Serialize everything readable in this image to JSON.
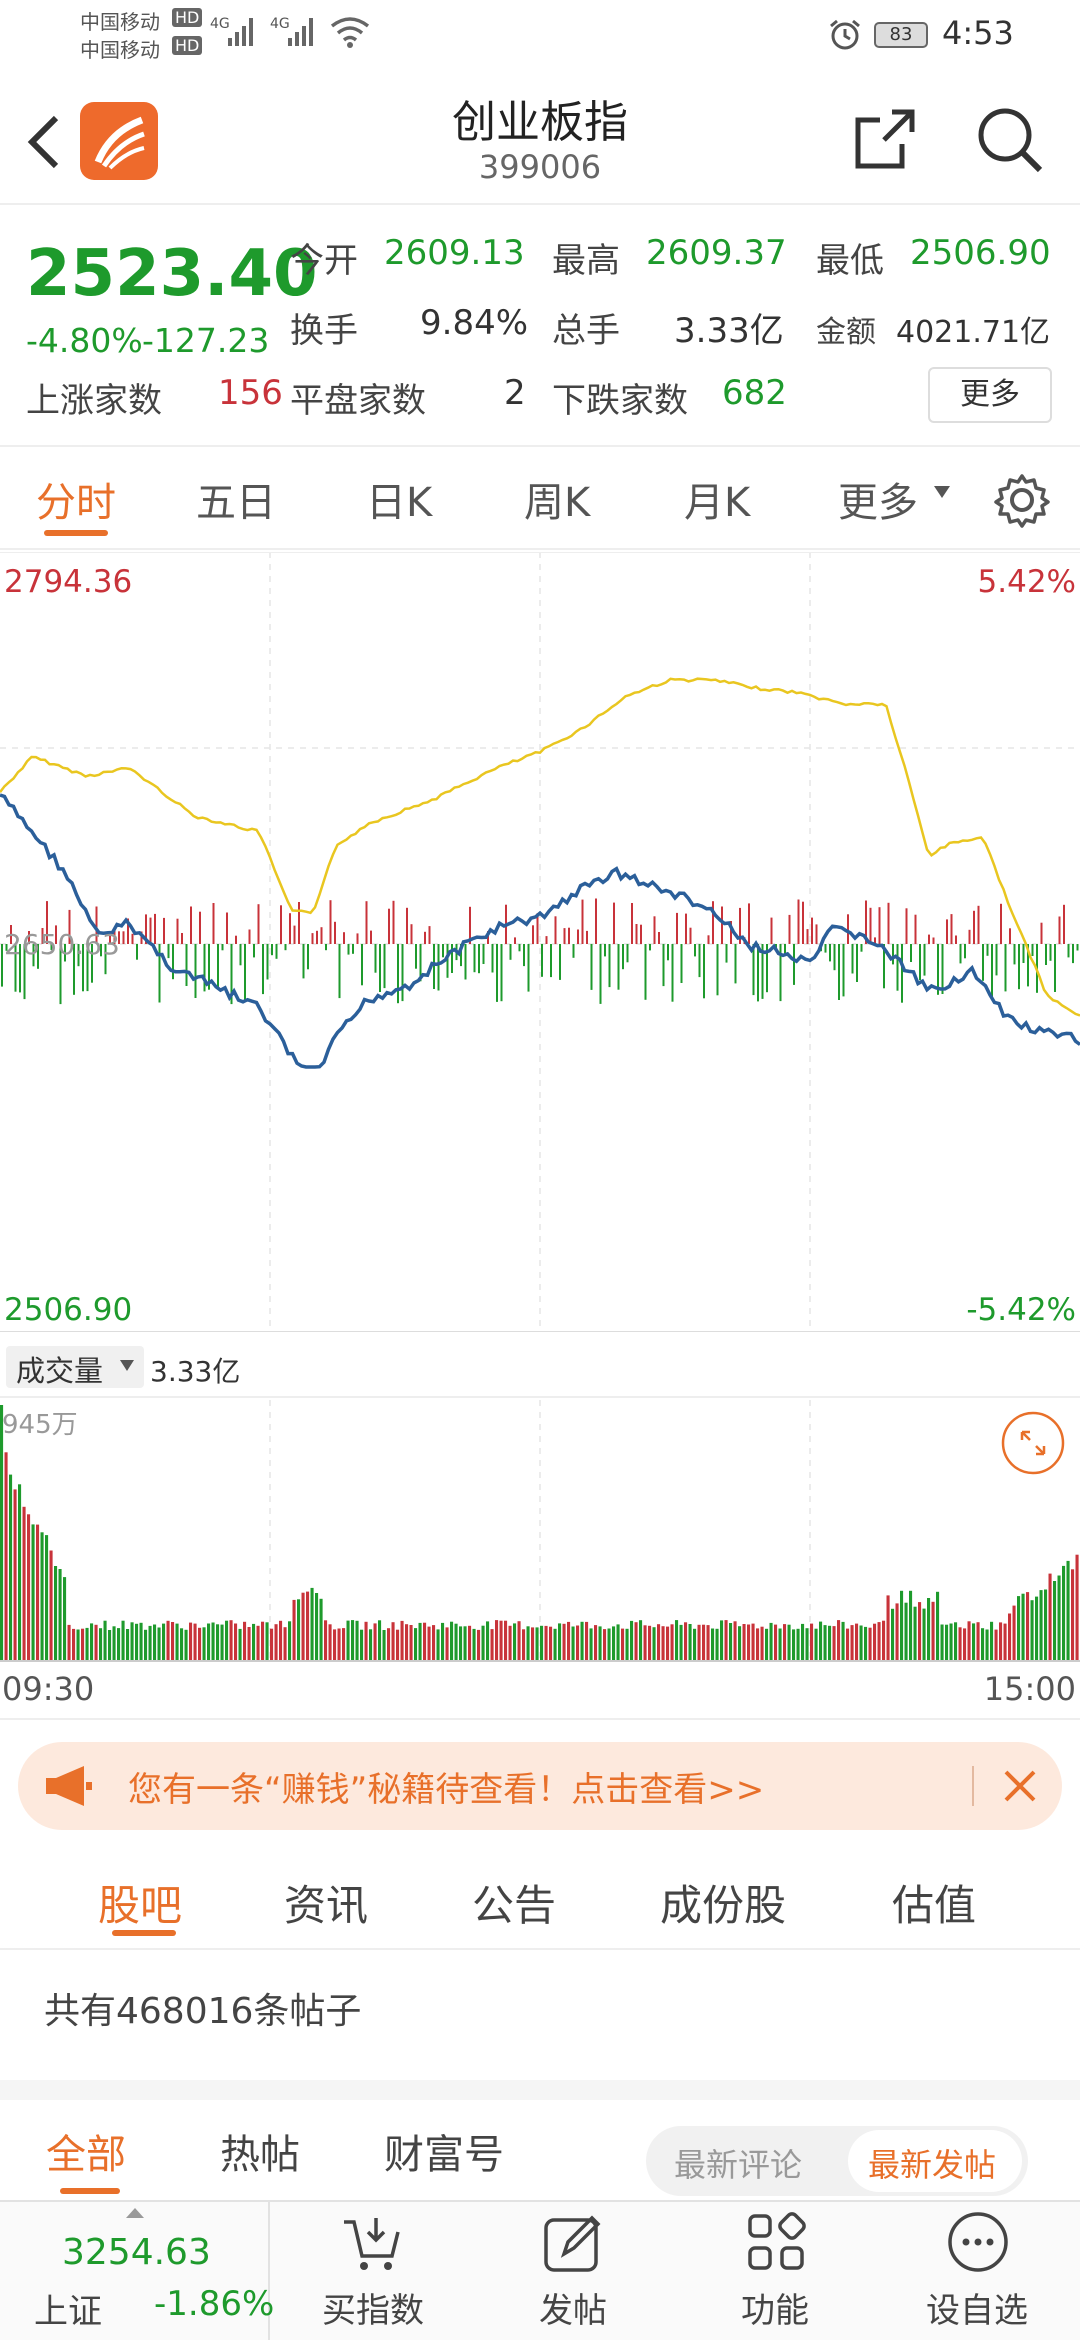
{
  "status": {
    "carrier1": "中国移动",
    "carrier2": "中国移动",
    "hd": "HD",
    "net": "4G",
    "battery": "83",
    "time": "4:53"
  },
  "header": {
    "title": "创业板指",
    "code": "399006"
  },
  "quote": {
    "price": "2523.40",
    "change_pct": "-4.80%",
    "change_abs": "-127.23",
    "open_label": "今开",
    "open": "2609.13",
    "high_label": "最高",
    "high": "2609.37",
    "low_label": "最低",
    "low": "2506.90",
    "turnover_label": "换手",
    "turnover": "9.84%",
    "volume_label": "总手",
    "volume": "3.33亿",
    "amount_label": "金额",
    "amount": "4021.71亿",
    "up_label": "上涨家数",
    "up": "156",
    "flat_label": "平盘家数",
    "flat": "2",
    "down_label": "下跌家数",
    "down": "682",
    "more_button": "更多"
  },
  "tabs": [
    {
      "label": "分时"
    },
    {
      "label": "五日"
    },
    {
      "label": "日K"
    },
    {
      "label": "周K"
    },
    {
      "label": "月K"
    },
    {
      "label": "更多"
    }
  ],
  "chart_labels": {
    "y_top": "2794.36",
    "y_mid": "2650.63",
    "y_bottom": "2506.90",
    "pct_top": "5.42%",
    "pct_bottom": "-5.42%",
    "vol_selector": "成交量",
    "vol_total": "3.33亿",
    "vol_max": "945万",
    "t_start": "09:30",
    "t_end": "15:00"
  },
  "colors": {
    "up": "#c8333a",
    "down": "#1e9a2c",
    "accent": "#e8702a",
    "price_line": "#2b5f9a",
    "avg_line": "#e9c620"
  },
  "banner": {
    "text": "您有一条“赚钱”秘籍待查看！点击查看>>"
  },
  "subtabs": [
    {
      "label": "股吧"
    },
    {
      "label": "资讯"
    },
    {
      "label": "公告"
    },
    {
      "label": "成份股"
    },
    {
      "label": "估值"
    }
  ],
  "posts": {
    "count_text": "共有468016条帖子"
  },
  "filter": {
    "all": "全部",
    "hot": "热帖",
    "fortune": "财富号",
    "latest_comment": "最新评论",
    "latest_post": "最新发帖"
  },
  "bottom": {
    "index_value": "3254.63",
    "index_name": "上证",
    "index_change": "-1.86%",
    "buy_index": "买指数",
    "post": "发帖",
    "functions": "功能",
    "watchlist": "设自选"
  }
}
